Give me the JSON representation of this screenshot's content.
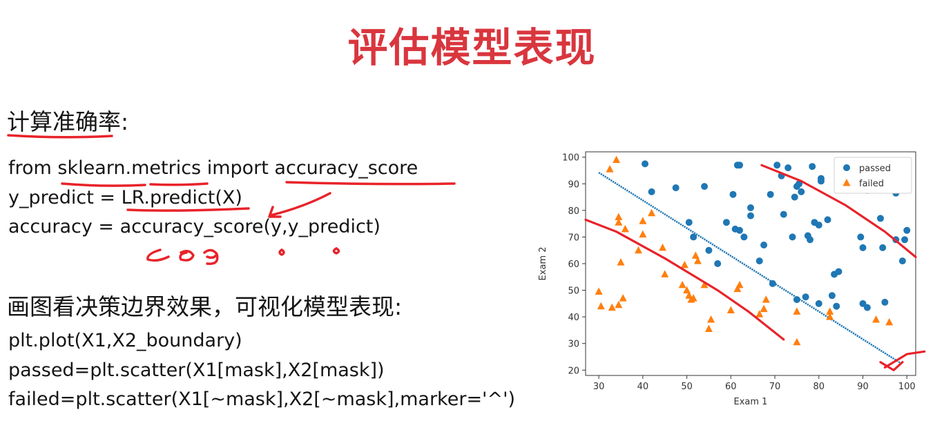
{
  "slide": {
    "title": "评估模型表现",
    "section1_heading": "计算准确率:",
    "code1": [
      "from sklearn.metrics import accuracy_score",
      "y_predict = LR.predict(X)",
      "accuracy = accuracy_score(y,y_predict)"
    ],
    "section2_heading": "画图看决策边界效果，可视化模型表现:",
    "code2": [
      "plt.plot(X1,X2_boundary)",
      "passed=plt.scatter(X1[mask],X2[mask])",
      "failed=plt.scatter(X1[~mask],X2[~mask],marker='^')"
    ]
  },
  "chart_data": {
    "type": "scatter",
    "xlabel": "Exam 1",
    "ylabel": "Exam 2",
    "xlim": [
      27,
      102
    ],
    "ylim": [
      18,
      102
    ],
    "xticks": [
      30,
      40,
      50,
      60,
      70,
      80,
      90,
      100
    ],
    "yticks": [
      20,
      30,
      40,
      50,
      60,
      70,
      80,
      90,
      100
    ],
    "legend_position": "top-right",
    "boundary": {
      "x": [
        30,
        99
      ],
      "y": [
        94.2,
        22.2
      ],
      "color": "#1f77b4"
    },
    "series": [
      {
        "name": "passed",
        "marker": "circle",
        "color": "#1f77b4",
        "points": [
          [
            40.5,
            97.5
          ],
          [
            42,
            87
          ],
          [
            47.5,
            88.5
          ],
          [
            50.5,
            75.5
          ],
          [
            51.5,
            70
          ],
          [
            54,
            89
          ],
          [
            55,
            65
          ],
          [
            57,
            60
          ],
          [
            59,
            75.5
          ],
          [
            60.5,
            86
          ],
          [
            61,
            73
          ],
          [
            61.5,
            97
          ],
          [
            62,
            97
          ],
          [
            62,
            72.5
          ],
          [
            63,
            70
          ],
          [
            64.5,
            81
          ],
          [
            64.5,
            78
          ],
          [
            66.5,
            61
          ],
          [
            67.5,
            67
          ],
          [
            69,
            86
          ],
          [
            69.5,
            52.5
          ],
          [
            70.5,
            97
          ],
          [
            71.5,
            93
          ],
          [
            72,
            78.5
          ],
          [
            73,
            96
          ],
          [
            74,
            70
          ],
          [
            74.5,
            85
          ],
          [
            75,
            89
          ],
          [
            75,
            46.5
          ],
          [
            75.5,
            90
          ],
          [
            76,
            87
          ],
          [
            77,
            47.5
          ],
          [
            77.5,
            70.5
          ],
          [
            78,
            69
          ],
          [
            78.5,
            96.5
          ],
          [
            79,
            75.5
          ],
          [
            80,
            74.5
          ],
          [
            80,
            45
          ],
          [
            80.5,
            92
          ],
          [
            80.5,
            91
          ],
          [
            82,
            76.5
          ],
          [
            83,
            48
          ],
          [
            83.5,
            56
          ],
          [
            84,
            44
          ],
          [
            84.5,
            57
          ],
          [
            89.5,
            70
          ],
          [
            90,
            66
          ],
          [
            90,
            45
          ],
          [
            91,
            43.5
          ],
          [
            91,
            87.5
          ],
          [
            94,
            77
          ],
          [
            94.5,
            66
          ],
          [
            95,
            45.5
          ],
          [
            97.5,
            86.5
          ],
          [
            97.5,
            69
          ],
          [
            99,
            61
          ],
          [
            99.5,
            69
          ],
          [
            100,
            72.5
          ]
        ]
      },
      {
        "name": "failed",
        "marker": "triangle",
        "color": "#ff7f0e",
        "points": [
          [
            30,
            49.5
          ],
          [
            30.5,
            44
          ],
          [
            32.5,
            95.5
          ],
          [
            33,
            43.5
          ],
          [
            34,
            99
          ],
          [
            34.5,
            77.5
          ],
          [
            34.5,
            75.5
          ],
          [
            34.5,
            44.5
          ],
          [
            35,
            60.5
          ],
          [
            35.5,
            47
          ],
          [
            36,
            73
          ],
          [
            39,
            65
          ],
          [
            40,
            71
          ],
          [
            40,
            76
          ],
          [
            42,
            79
          ],
          [
            44.5,
            66
          ],
          [
            45,
            56
          ],
          [
            49,
            52
          ],
          [
            49.5,
            59.5
          ],
          [
            50,
            50
          ],
          [
            50.5,
            48
          ],
          [
            51,
            46.5
          ],
          [
            51.5,
            47
          ],
          [
            52,
            63
          ],
          [
            52.5,
            61
          ],
          [
            54,
            52
          ],
          [
            55,
            35.5
          ],
          [
            55.5,
            39
          ],
          [
            60,
            42.5
          ],
          [
            61.5,
            50.5
          ],
          [
            62,
            52
          ],
          [
            66.5,
            41
          ],
          [
            67.5,
            43
          ],
          [
            68,
            46.5
          ],
          [
            75,
            42
          ],
          [
            75,
            30.5
          ],
          [
            82.5,
            40
          ],
          [
            82.5,
            42
          ],
          [
            93,
            39
          ],
          [
            96,
            38
          ]
        ]
      }
    ]
  }
}
